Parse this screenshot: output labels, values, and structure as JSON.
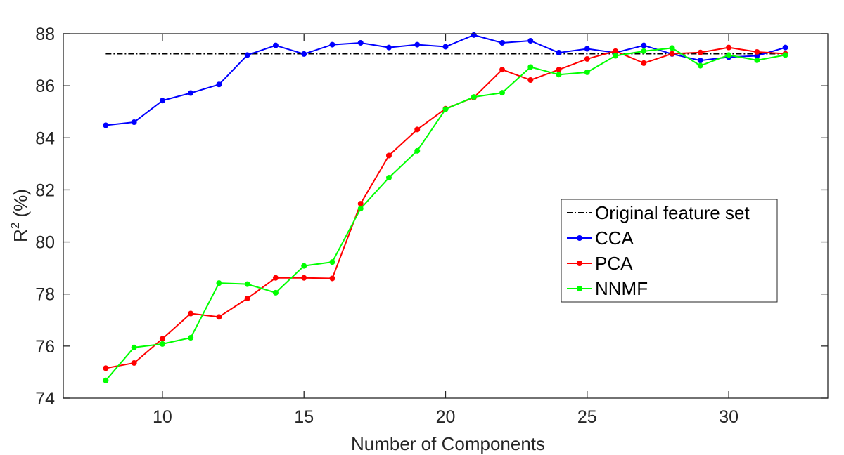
{
  "chart_data": {
    "type": "line",
    "xlabel": "Number of Components",
    "ylabel_main": "R",
    "ylabel_sup": "2",
    "ylabel_rest": " (%)",
    "xlim": [
      6.5,
      33.5
    ],
    "ylim": [
      74,
      88
    ],
    "xticks": [
      10,
      15,
      20,
      25,
      30
    ],
    "yticks": [
      74,
      76,
      78,
      80,
      82,
      84,
      86,
      88
    ],
    "grid": false,
    "legend_position": "right-center",
    "baseline": {
      "name": "Original feature set",
      "value": 87.23,
      "x_range": [
        8,
        32
      ],
      "color": "#000000",
      "style": "dash-dot"
    },
    "x": [
      8,
      9,
      10,
      11,
      12,
      13,
      14,
      15,
      16,
      17,
      18,
      19,
      20,
      21,
      22,
      23,
      24,
      25,
      26,
      27,
      28,
      29,
      30,
      31,
      32
    ],
    "series": [
      {
        "name": "CCA",
        "color": "#0000ff",
        "values": [
          84.48,
          84.6,
          85.43,
          85.72,
          86.05,
          87.18,
          87.55,
          87.22,
          87.58,
          87.65,
          87.47,
          87.58,
          87.5,
          87.95,
          87.65,
          87.73,
          87.27,
          87.42,
          87.27,
          87.55,
          87.22,
          86.97,
          87.1,
          87.15,
          87.47
        ]
      },
      {
        "name": "PCA",
        "color": "#ff0000",
        "values": [
          75.15,
          75.35,
          76.28,
          77.25,
          77.12,
          77.83,
          78.62,
          78.62,
          78.6,
          81.47,
          83.32,
          84.32,
          85.12,
          85.55,
          86.62,
          86.22,
          86.62,
          87.03,
          87.33,
          86.87,
          87.23,
          87.28,
          87.47,
          87.3,
          87.23
        ]
      },
      {
        "name": "NNMF",
        "color": "#00ff00",
        "values": [
          74.68,
          75.95,
          76.08,
          76.32,
          78.42,
          78.38,
          78.05,
          79.08,
          79.23,
          81.28,
          82.47,
          83.5,
          85.1,
          85.57,
          85.73,
          86.72,
          86.43,
          86.52,
          87.15,
          87.33,
          87.45,
          86.77,
          87.18,
          86.98,
          87.18
        ]
      }
    ]
  }
}
